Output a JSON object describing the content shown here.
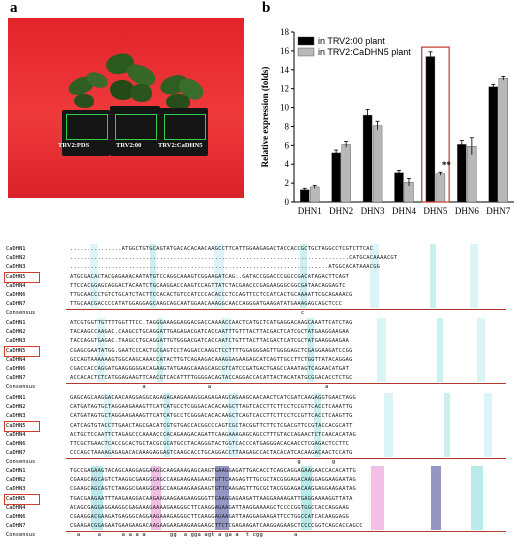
{
  "panel_a": {
    "letter": "a",
    "labels": [
      "TRV2:PDS",
      "TRV2:00",
      "TRV2:CaDHN5"
    ]
  },
  "panel_b": {
    "letter": "b"
  },
  "chart_data": {
    "type": "bar",
    "categories": [
      "DHN1",
      "DHN2",
      "DHN3",
      "DHN4",
      "DHN5",
      "DHN6",
      "DHN7"
    ],
    "series": [
      {
        "name": "in TRV2:00 plant",
        "color": "#000000",
        "values": [
          1.3,
          5.2,
          9.2,
          3.1,
          15.4,
          6.1,
          12.2
        ],
        "errors": [
          0.15,
          0.3,
          0.6,
          0.25,
          0.5,
          0.4,
          0.25
        ]
      },
      {
        "name": "in TRV2:CaDHN5 plant",
        "color": "#b8b8b8",
        "values": [
          1.6,
          6.1,
          8.1,
          2.1,
          3.0,
          5.9,
          13.1
        ],
        "errors": [
          0.15,
          0.3,
          0.45,
          0.4,
          0.15,
          0.9,
          0.2
        ]
      }
    ],
    "ylabel": "Relative expression (folds)",
    "ylim": [
      0,
      18
    ],
    "yticks": [
      0,
      2,
      4,
      6,
      8,
      10,
      12,
      14,
      16,
      18
    ],
    "annotation": "**",
    "legend": "top-left"
  },
  "alignment": {
    "names": [
      "CaDHN1",
      "CaDHN2",
      "CaDHN3",
      "CaDHN5",
      "CaDHN4",
      "CaDHN6",
      "CaDHN7"
    ],
    "consensus_label": "Consensus",
    "blocks": [
      {
        "rows": [
          "...............ATGGCTGTGCAGTATGACACACAACAAGCCTTCATTGGAAGAGACTACCACCGCTGCTAGGCCTCGTCTTCAC",
          ".................................................................................CATGCACAAAACGT",
          "...........................................................................ATGGCACATAAACGG",
          "ATGCGACACTACGAGAAACAATATGTCCAGGCAAAGTCGGAAGATCAG..GATACCGGACCCGGCCGACATAGACTTCAGT",
          "TTCCACGGAGCAGGACTACAATCTGCAAGGACCAAGTCCAGTTATCTACGAACCCGAGAAGGGCGGCGATAACAGGAGTC",
          "TTGCAACCCTGTCTGCATCTACTTCCACACTGTCCATCCCACACCCTCCAGTTCCTCCATCACTGCAAAATTCGCAGAAACG",
          "TTGCAACGACCCCATATGGAGGAGCAAGCAGCAATGGAACAAAGGCAACCAGGGATGAAGATATGAAAGAGCAGCTCCC"
        ],
        "consensus": "                                                                   c"
      },
      {
        "rows": [
          "ATCGTGGTTGTTTTGGTTTCC.TAGGGAAAGGAGGACGACCAAAACCAACTCATGCTCATGAGGACAAGCAAATTCATCTAG",
          "TACAAGCCAAGAC.CAAGCCTGCAGGATTGAGAGACGATCACCAATTTGTTTACTTACGACTCATCGCTATGAAGGAAGAA",
          "TACCAGGTGAGAC.TAAGCCTGCAGGATTGTGGGACGATCACCAATCTGTTTACTTACGACTCATCGCTATGAAGGAAGAA",
          "CGAGCGAATATGG.GAATCCCACTGCGAGTCCTAGGACCAAGCTCCTTTTGGAGGGAGTTGGGGAGCTCGAGGAAGATCCGG",
          "GCCAGTAAAAAAGTGGCAAGCAAACCATACTTGTCAGAAGACAAAGGAGAAGAGCATCAGTTGCCTTCTGGTTATACAGGAG",
          "CGACCACCAGGATGAAGGGGGACAGAAGTATGAAGCAAAGCAGCGTCATCCGATGACTGAGCCAAATAGTCAGAACATGAT",
          "ACCACACTCTCATGGAGAAGTTCAACGTCACATTTTGGGGACAGTACCAGGACCACATTACTACATATGCGGACACCTCTGC"
        ],
        "consensus": "                     a                  a                                 a"
      },
      {
        "rows": [
          "GAGCAGCAAGGACAACAAGGAGGCAGAGAGAAGAAAGGGAGAGAAGCAGAAGCAACAACTCATCGATCAAGAGGTGAACTAGG",
          "CATGATAGTGCTAGGAAGAAAGTTCATCATGCCTCGGGACACACAAGCTTAGTCACCTTCTTCCTCCGTTCACCTCAAATTG",
          "CATGATAGTGCTAGGAAGAAAGTTCATCATGCCTCGGGACACACAAGCTCAGTCACCTTCTTCCTCCGTTCACCTCAAGTTG",
          "CATCAGTGTACCTTGAACTAGCGACATCGTGTGACCACGGCCCAGTCGCTACGGTTCTTCTCGACGTTCCGTACCACGCATT",
          "ACTGCTCCAATTCTAGAGCCCAAAACCCACAGAAGACAGATTCAAGAAAGAGCAGCCTTTGTACCAGAACTCTCAACACATAG",
          "TTCGCTGAACTCACCGCACTGCTACGCGCATGCCTACAGGGTACTGGTCACCCATGAGGGACACAACCTCGAGACTCCTTC",
          "CCCAGCTAAAAGAGAGACACAAAGAGGAGTCAAGCACCTGCAGGACCTTAAGAGCCACTACACATCACAAGACAACTCCATG"
        ],
        "consensus": "                                                                  g         g"
      },
      {
        "rows": [
          "TGCCGAGAAGTACAGCAAGGAGGAAGGCAAGAAAGAGCAAGTGAAGGAGATTGACACCTCAGCAGGAGAAGAACCACACATTG",
          "CGAAGCAGCAGTCTAAGGCGAAGGCAGCCAAGAAGAAGAAGTGTTCAAGAGTTTGCGCTACGGGAGACAAGGAGGAAGAATAG",
          "CGAAGCAGCAGTCTAAGGCGAAGGCAGCCAAGAAGAAGAAGTGTTCAAGAGTTTGCGCTACGGGAGACAAGGAGGAAGAATAG",
          "TGACGAAGAATTTAAGAAGGACAAGAAGAAGAAGAAGGGGTTCAAGGAGAAGATTAAGGAAAAGATTGAGGAAAAGGTTATA",
          "ACAGCGAGGAGGAAGGCGAGAAAGAAAAGAAGGGCTTCAAGGAGAAGATTAAGGAAAAGCTCCCCGGTGGCCACCAGGAAG",
          "CGAAGGACGAAGATGAGGGCAGGAAGAAAGAGGGCTTCAAGGAGAAGATTAAGGAGAAGATTCCTGGCCATCACAAGGAGG",
          "CGAAGACGGAGAATGAAGAAGACAAGAAGAAGAAGAAGAAGCTTCTCGAGAAGATCAAGGAGAAGCTCCCCGGTCAGCACCAGCC"
        ],
        "consensus": "  a     a      a a a a       gg  a gga agt a ga a  t cgg         a"
      }
    ]
  }
}
